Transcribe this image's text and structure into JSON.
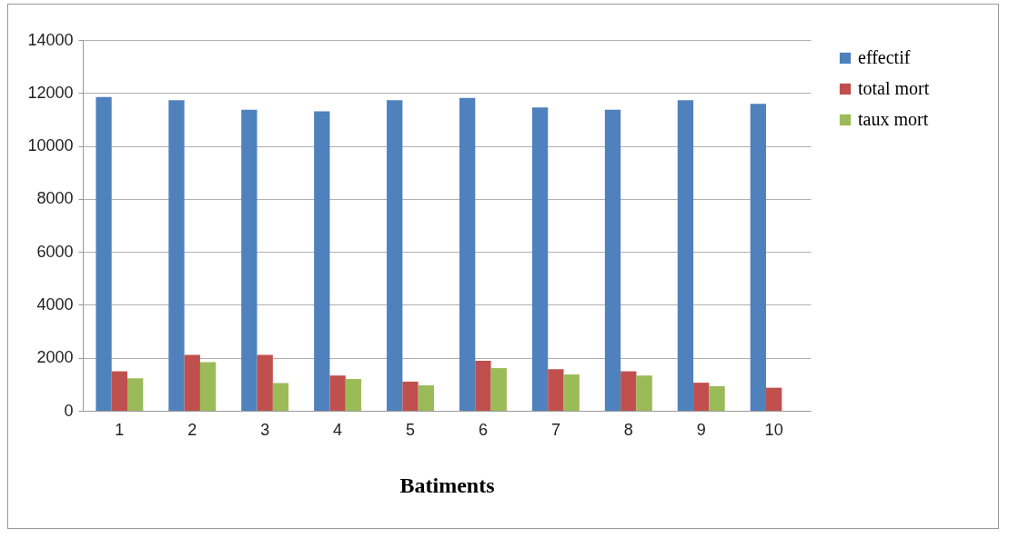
{
  "chart_data": {
    "type": "bar",
    "xlabel": "Batiments",
    "categories": [
      "1",
      "2",
      "3",
      "4",
      "5",
      "6",
      "7",
      "8",
      "9",
      "10"
    ],
    "series": [
      {
        "name": "effectif",
        "color": "#4f81bd",
        "values": [
          11850,
          11730,
          11370,
          11310,
          11730,
          11810,
          11450,
          11370,
          11730,
          11590
        ]
      },
      {
        "name": "total mort",
        "color": "#c0504d",
        "values": [
          1490,
          2110,
          2110,
          1330,
          1100,
          1890,
          1570,
          1490,
          1060,
          870
        ]
      },
      {
        "name": "taux mort",
        "color": "#9bbb59",
        "values": [
          1230,
          1840,
          1050,
          1200,
          960,
          1610,
          1370,
          1330,
          930,
          null
        ]
      }
    ],
    "ylim": [
      0,
      14000
    ],
    "yticks": [
      0,
      2000,
      4000,
      6000,
      8000,
      10000,
      12000,
      14000
    ],
    "grid": "y",
    "legend": "right"
  }
}
